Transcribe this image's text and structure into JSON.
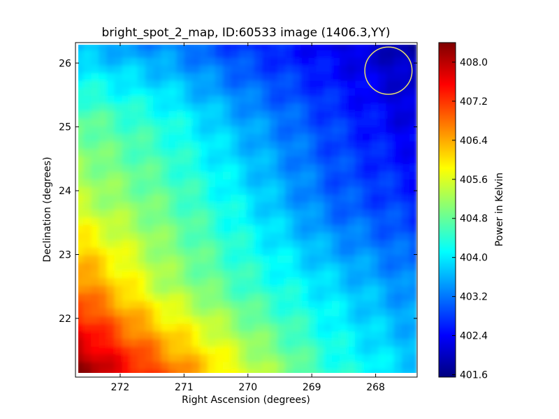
{
  "chart_data": {
    "type": "heatmap",
    "title": "bright_spot_2_map, ID:60533 image (1406.3,YY)",
    "xlabel": "Right Ascension (degrees)",
    "ylabel": "Declination (degrees)",
    "xlim": [
      272.7,
      267.35
    ],
    "ylim": [
      21.08,
      26.32
    ],
    "x_ticks": [
      272,
      271,
      270,
      269,
      268
    ],
    "y_ticks": [
      22,
      23,
      24,
      25,
      26
    ],
    "x_tick_labels": [
      "272",
      "271",
      "270",
      "269",
      "268"
    ],
    "y_tick_labels": [
      "22",
      "23",
      "24",
      "25",
      "26"
    ],
    "colormap": "jet",
    "colorbar": {
      "label": "Power in Kelvin",
      "range": [
        401.55,
        408.4
      ],
      "ticks": [
        408.0,
        407.2,
        406.4,
        405.6,
        404.8,
        404.0,
        403.2,
        402.4,
        401.6
      ],
      "tick_labels": [
        "408.0",
        "407.2",
        "406.4",
        "405.6",
        "404.8",
        "404.0",
        "403.2",
        "402.4",
        "401.6"
      ]
    },
    "power_grid": {
      "ra": [
        272.6,
        271.3,
        270.0,
        268.7,
        267.4
      ],
      "dec": [
        21.2,
        22.5,
        23.8,
        25.1,
        26.3
      ],
      "values": [
        [
          408.3,
          406.9,
          405.5,
          404.4,
          403.8
        ],
        [
          406.7,
          405.3,
          404.5,
          403.9,
          403.3
        ],
        [
          405.4,
          404.8,
          404.0,
          403.1,
          402.7
        ],
        [
          404.8,
          404.3,
          403.5,
          402.8,
          402.2
        ],
        [
          403.6,
          403.3,
          402.7,
          402.3,
          401.8
        ]
      ]
    },
    "marker": {
      "shape": "circle",
      "center_ra": 267.8,
      "center_dec": 25.88,
      "radius_deg": 0.37,
      "color": "#e8e070"
    }
  },
  "colors": {
    "jet_stops": [
      "#00007f",
      "#0000ff",
      "#007fff",
      "#00ffff",
      "#7fff7f",
      "#ffff00",
      "#ff7f00",
      "#ff0000",
      "#7f0000"
    ]
  }
}
